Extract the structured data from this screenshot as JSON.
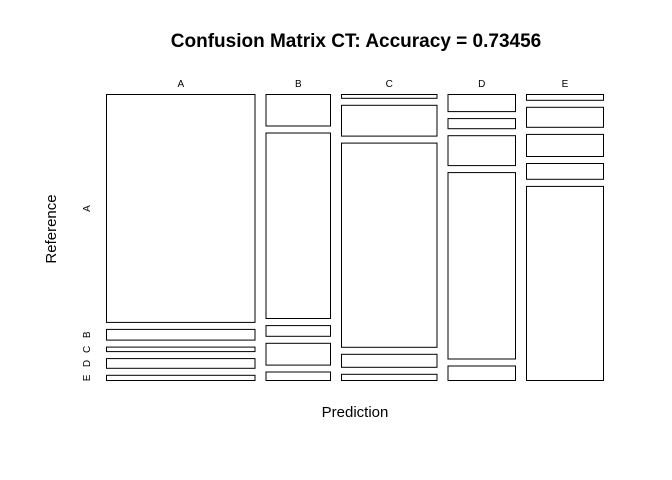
{
  "chart_data": {
    "type": "mosaic",
    "title": "Confusion Matrix CT: Accuracy = 0.73456",
    "xlabel": "Prediction",
    "ylabel": "Reference",
    "columns": [
      "A",
      "B",
      "C",
      "D",
      "E"
    ],
    "rows": [
      "A",
      "B",
      "C",
      "D",
      "E"
    ],
    "column_proportions": [
      0.299,
      0.131,
      0.193,
      0.137,
      0.156
    ],
    "cell_proportions": [
      [
        0.706,
        0.117,
        0.014,
        0.062,
        0.026
      ],
      [
        0.036,
        0.671,
        0.093,
        0.038,
        0.08
      ],
      [
        0.017,
        0.042,
        0.6,
        0.106,
        0.088
      ],
      [
        0.033,
        0.082,
        0.041,
        0.642,
        0.064
      ],
      [
        0.019,
        0.034,
        0.021,
        0.053,
        0.742
      ]
    ]
  }
}
